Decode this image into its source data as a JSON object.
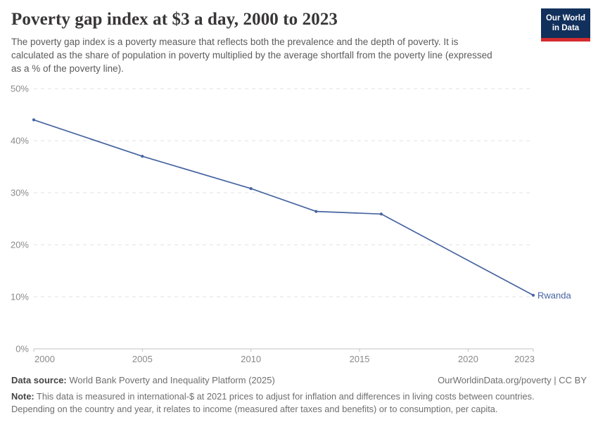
{
  "header": {
    "title": "Poverty gap index at $3 a day, 2000 to 2023",
    "subtitle": "The poverty gap index is a poverty measure that reflects both the prevalence and the depth of poverty. It is calculated as the share of population in poverty multiplied by the average shortfall from the poverty line (expressed as a % of the poverty line).",
    "logo": {
      "line1": "Our World",
      "line2": "in Data"
    }
  },
  "chart_data": {
    "type": "line",
    "title": "Poverty gap index at $3 a day, 2000 to 2023",
    "series": [
      {
        "name": "Rwanda",
        "color": "#4664a0",
        "x": [
          2000,
          2005,
          2010,
          2013,
          2016,
          2023
        ],
        "values": [
          44.0,
          37.0,
          30.8,
          26.4,
          25.9,
          10.3
        ]
      }
    ],
    "xlabel": "",
    "ylabel": "",
    "xlim": [
      2000,
      2023
    ],
    "ylim": [
      0,
      50
    ],
    "x_ticks": [
      2000,
      2005,
      2010,
      2015,
      2020,
      2023
    ],
    "y_ticks": [
      0,
      10,
      20,
      30,
      40,
      50
    ],
    "y_tick_suffix": "%",
    "grid": "horizontal-dashed",
    "legend_position": "end-of-line-label",
    "end_label": "Rwanda",
    "axis_text_color": "#8a8a8a",
    "grid_color": "#e0e0e0",
    "axis_line_color": "#c2c2c2"
  },
  "footer": {
    "datasource_label": "Data source:",
    "datasource_text": " World Bank Poverty and Inequality Platform (2025)",
    "rights": "OurWorldinData.org/poverty | CC BY",
    "note_label": "Note:",
    "note_text": " This data is measured in international-$ at 2021 prices to adjust for inflation and differences in living costs between countries. Depending on the country and year, it relates to income (measured after taxes and benefits) or to consumption, per capita."
  }
}
